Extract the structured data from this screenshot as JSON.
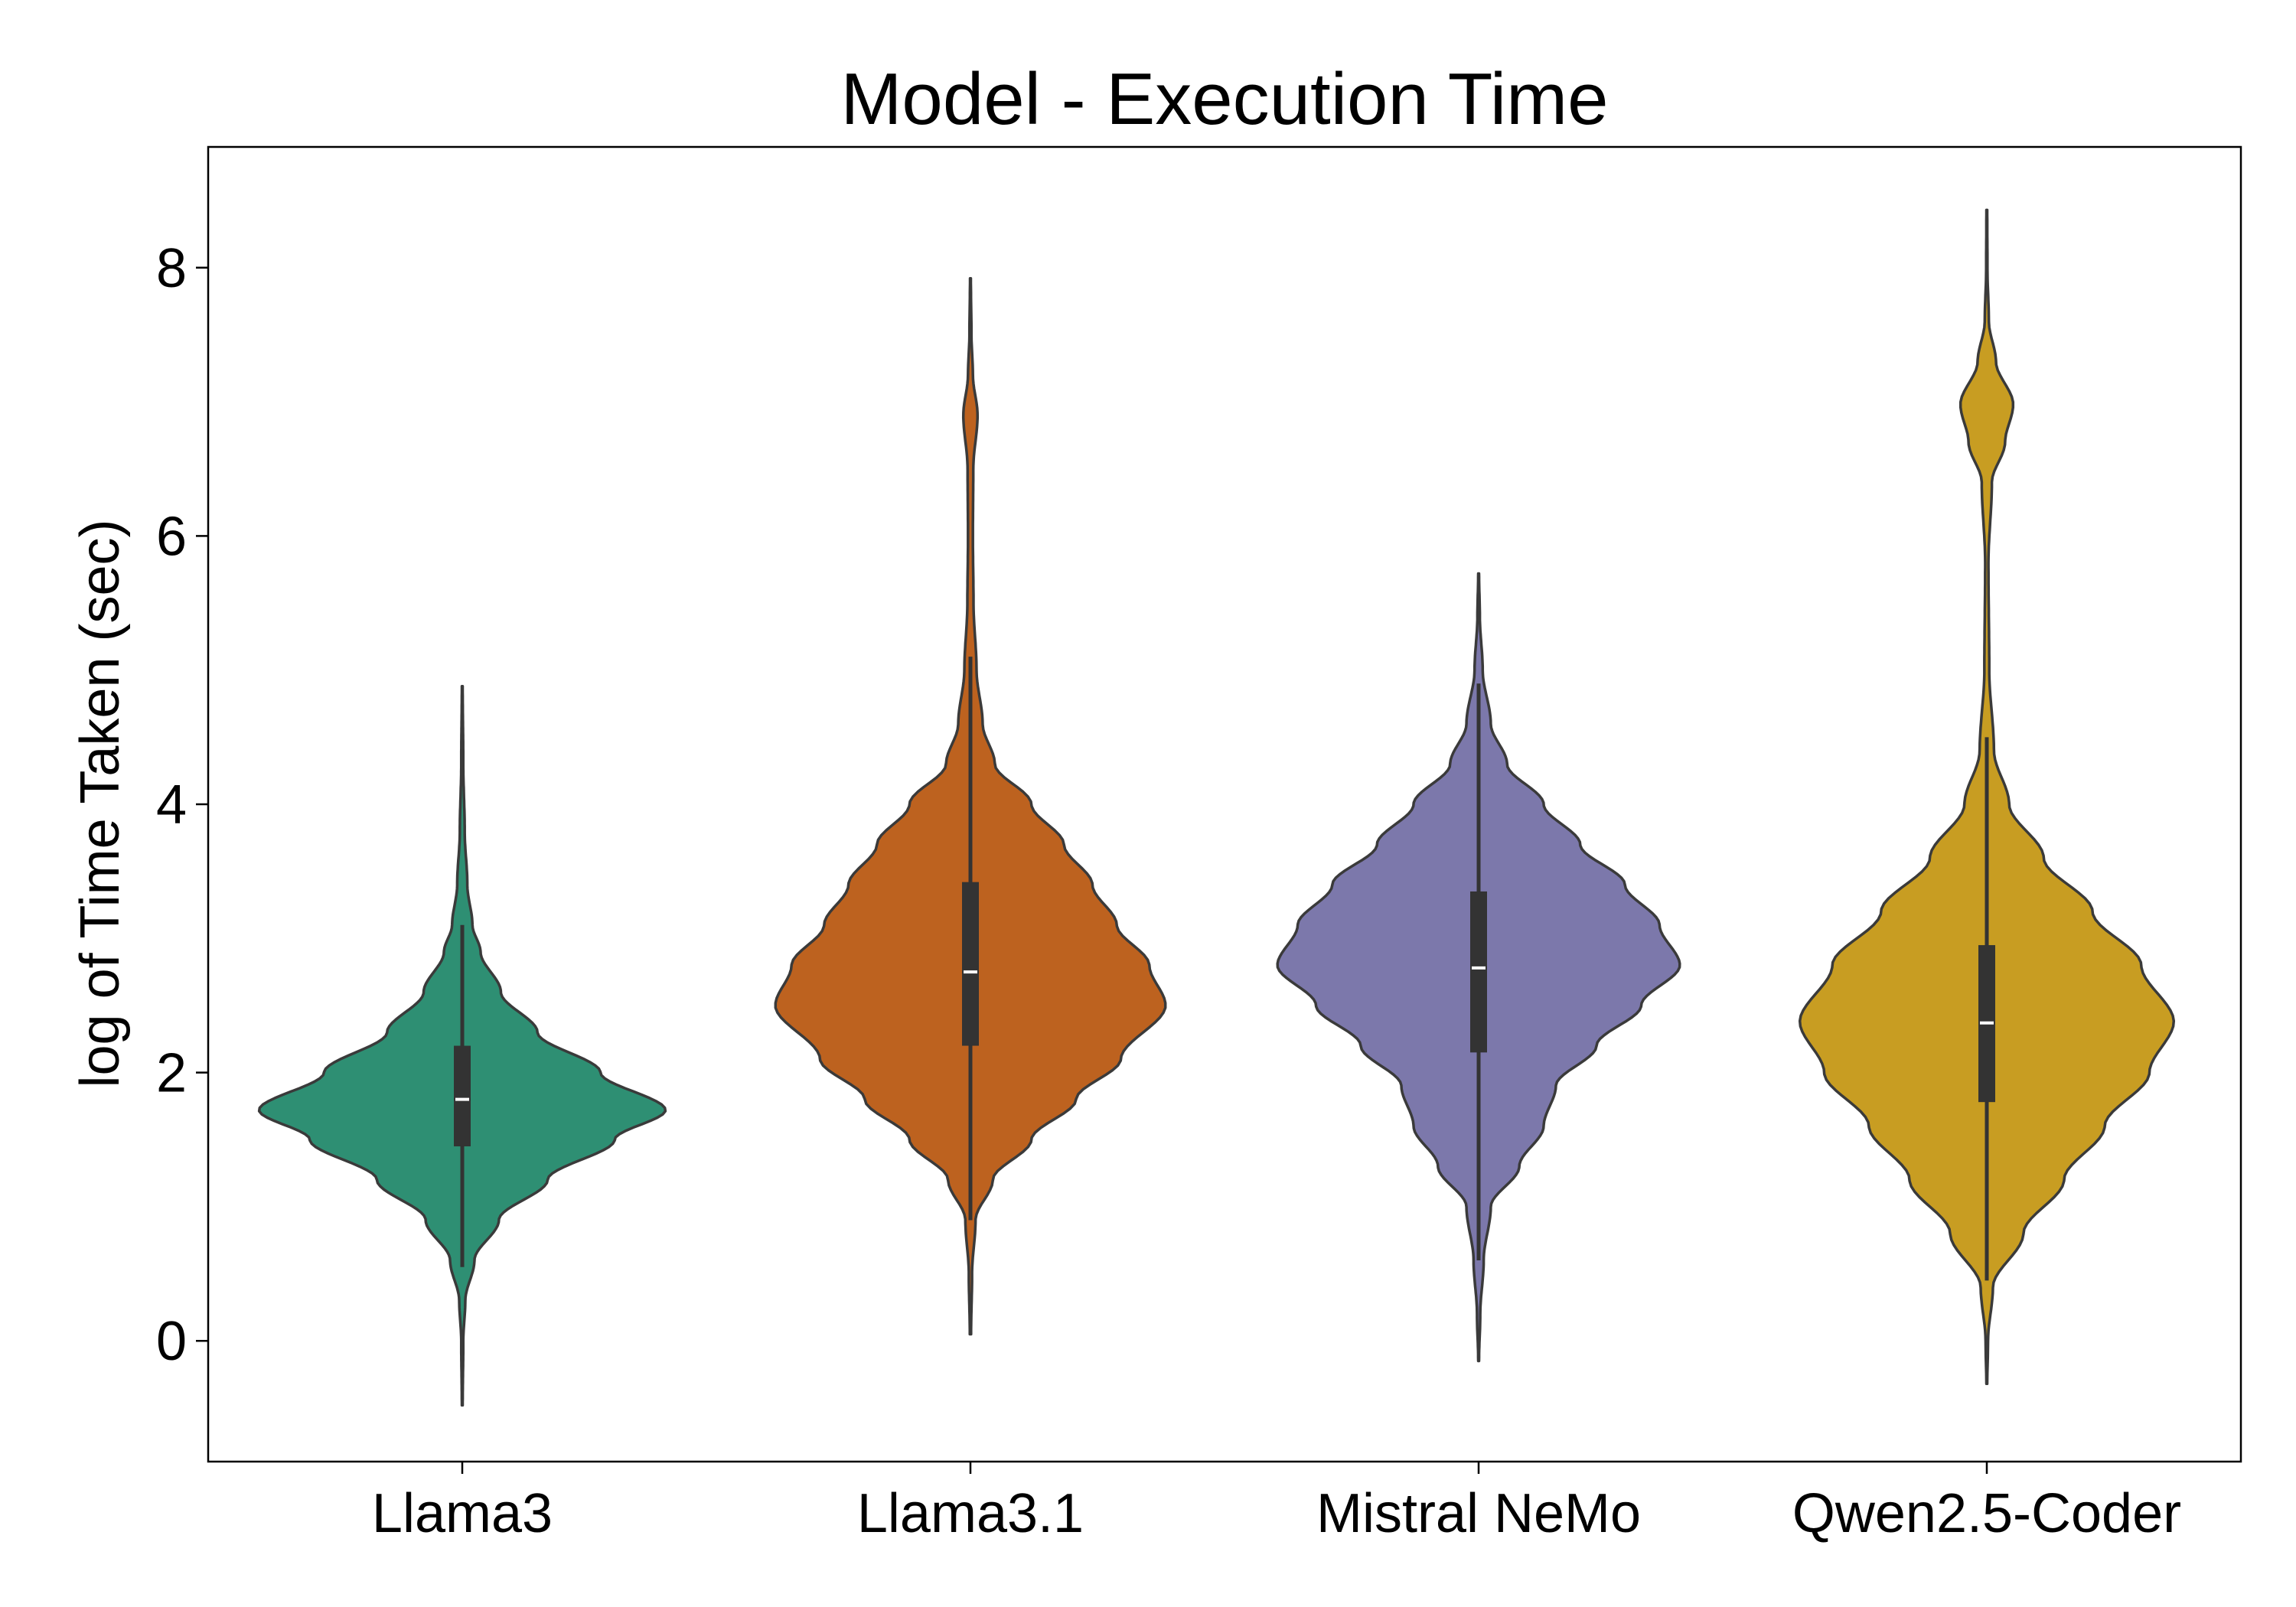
{
  "chart_data": {
    "type": "violin",
    "title": "Model - Execution Time",
    "xlabel": "",
    "ylabel": "log of Time Taken (sec)",
    "ylim": [
      -0.9,
      8.9
    ],
    "yticks": [
      0,
      2,
      4,
      6,
      8
    ],
    "grid": false,
    "legend": "none",
    "categories": [
      "Llama3",
      "Llama3.1",
      "Mistral NeMo",
      "Qwen2.5-Coder"
    ],
    "colors": [
      "#2e8f73",
      "#bd621f",
      "#7c78ab",
      "#c89d22"
    ],
    "series": [
      {
        "category": "Llama3",
        "median": 1.8,
        "q1": 1.45,
        "q3": 2.2,
        "whisker_low": 0.55,
        "whisker_high": 3.1,
        "extent": [
          -0.48,
          4.88
        ],
        "density": [
          [
            -0.48,
            0.002
          ],
          [
            0.0,
            0.005
          ],
          [
            0.3,
            0.015
          ],
          [
            0.6,
            0.06
          ],
          [
            0.9,
            0.18
          ],
          [
            1.2,
            0.42
          ],
          [
            1.5,
            0.75
          ],
          [
            1.72,
            1.0
          ],
          [
            2.0,
            0.68
          ],
          [
            2.3,
            0.37
          ],
          [
            2.6,
            0.19
          ],
          [
            2.9,
            0.09
          ],
          [
            3.1,
            0.05
          ],
          [
            3.4,
            0.025
          ],
          [
            3.8,
            0.012
          ],
          [
            4.3,
            0.005
          ],
          [
            4.88,
            0.002
          ]
        ]
      },
      {
        "category": "Llama3.1",
        "median": 2.75,
        "q1": 2.2,
        "q3": 3.42,
        "whisker_low": 0.9,
        "whisker_high": 5.1,
        "extent": [
          0.05,
          7.92
        ],
        "density": [
          [
            0.05,
            0.003
          ],
          [
            0.5,
            0.008
          ],
          [
            0.9,
            0.025
          ],
          [
            1.2,
            0.11
          ],
          [
            1.5,
            0.3
          ],
          [
            1.8,
            0.52
          ],
          [
            2.1,
            0.74
          ],
          [
            2.5,
            0.96
          ],
          [
            2.8,
            0.88
          ],
          [
            3.1,
            0.72
          ],
          [
            3.4,
            0.6
          ],
          [
            3.7,
            0.46
          ],
          [
            4.0,
            0.3
          ],
          [
            4.3,
            0.12
          ],
          [
            4.6,
            0.06
          ],
          [
            5.0,
            0.03
          ],
          [
            5.5,
            0.015
          ],
          [
            6.0,
            0.012
          ],
          [
            6.5,
            0.014
          ],
          [
            6.9,
            0.035
          ],
          [
            7.2,
            0.012
          ],
          [
            7.5,
            0.005
          ],
          [
            7.92,
            0.002
          ]
        ]
      },
      {
        "category": "Mistral NeMo",
        "median": 2.78,
        "q1": 2.15,
        "q3": 3.35,
        "whisker_low": 0.6,
        "whisker_high": 4.9,
        "extent": [
          -0.15,
          5.72
        ],
        "density": [
          [
            -0.15,
            0.002
          ],
          [
            0.2,
            0.008
          ],
          [
            0.6,
            0.025
          ],
          [
            1.0,
            0.06
          ],
          [
            1.3,
            0.2
          ],
          [
            1.6,
            0.32
          ],
          [
            1.9,
            0.38
          ],
          [
            2.2,
            0.58
          ],
          [
            2.5,
            0.8
          ],
          [
            2.8,
            0.99
          ],
          [
            3.1,
            0.89
          ],
          [
            3.4,
            0.72
          ],
          [
            3.7,
            0.5
          ],
          [
            4.0,
            0.32
          ],
          [
            4.3,
            0.14
          ],
          [
            4.6,
            0.06
          ],
          [
            5.0,
            0.02
          ],
          [
            5.4,
            0.006
          ],
          [
            5.72,
            0.002
          ]
        ]
      },
      {
        "category": "Qwen2.5-Coder",
        "median": 2.37,
        "q1": 1.78,
        "q3": 2.95,
        "whisker_low": 0.45,
        "whisker_high": 4.5,
        "extent": [
          -0.32,
          8.43
        ],
        "density": [
          [
            -0.32,
            0.002
          ],
          [
            0.0,
            0.006
          ],
          [
            0.4,
            0.03
          ],
          [
            0.8,
            0.18
          ],
          [
            1.2,
            0.38
          ],
          [
            1.6,
            0.58
          ],
          [
            2.0,
            0.8
          ],
          [
            2.38,
            0.92
          ],
          [
            2.8,
            0.76
          ],
          [
            3.2,
            0.52
          ],
          [
            3.6,
            0.28
          ],
          [
            4.0,
            0.11
          ],
          [
            4.4,
            0.035
          ],
          [
            5.0,
            0.012
          ],
          [
            5.8,
            0.008
          ],
          [
            6.4,
            0.025
          ],
          [
            6.7,
            0.09
          ],
          [
            6.98,
            0.13
          ],
          [
            7.3,
            0.045
          ],
          [
            7.6,
            0.01
          ],
          [
            8.0,
            0.003
          ],
          [
            8.43,
            0.002
          ]
        ]
      }
    ]
  }
}
